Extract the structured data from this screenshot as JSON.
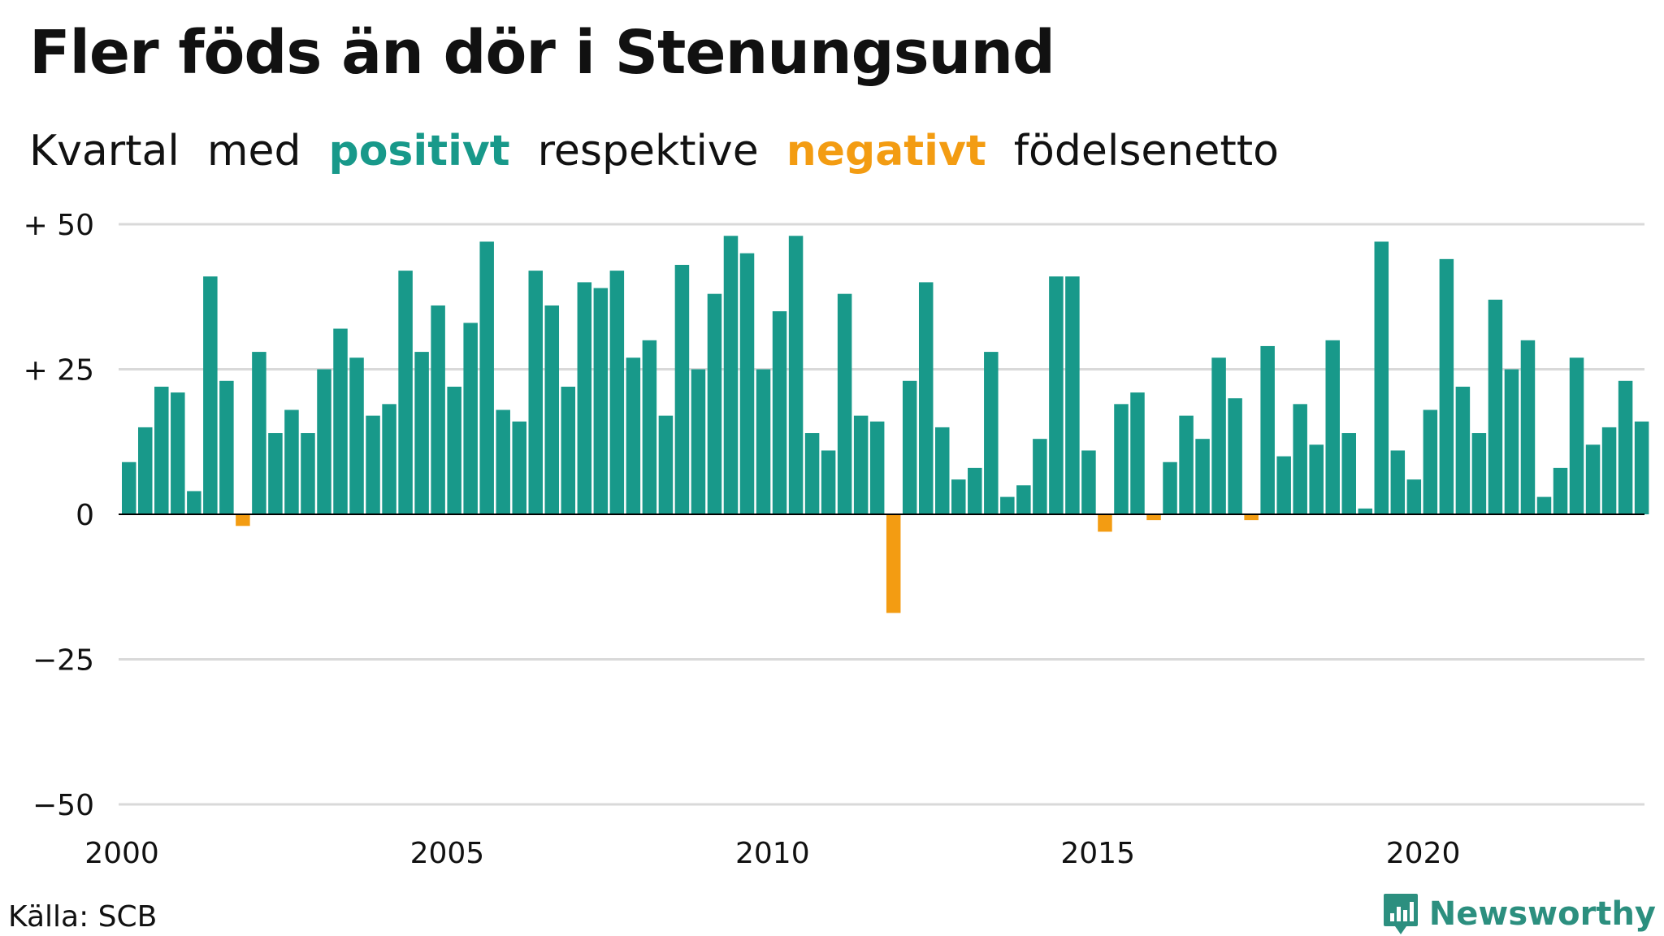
{
  "title": "Fler föds än dör i Stenungsund",
  "subtitle": {
    "part1": "Kvartal",
    "part2": "med",
    "positive": "positivt",
    "part3": "respektive",
    "negative": "negativt",
    "part4": "födelsenetto"
  },
  "source": "Källa: SCB",
  "brand": {
    "name": "Newsworthy",
    "icon": "newsworthy-logo-icon"
  },
  "colors": {
    "positive": "#18998a",
    "negative": "#f39c12",
    "grid": "#d9d9d9",
    "zero": "#000000",
    "brand": "#2c8f7f"
  },
  "chart_data": {
    "type": "bar",
    "x_start": "2000 Q1",
    "ylim": [
      -50,
      50
    ],
    "yticks": [
      50,
      25,
      0,
      -25,
      -50
    ],
    "ytick_labels": [
      "+ 50",
      "+ 25",
      "0",
      "−25",
      "−50"
    ],
    "xtick_labels": [
      "2000",
      "2005",
      "2010",
      "2015",
      "2020"
    ],
    "grid": true,
    "values": [
      9,
      15,
      22,
      21,
      4,
      41,
      23,
      -2,
      28,
      14,
      18,
      14,
      25,
      32,
      27,
      17,
      19,
      42,
      28,
      36,
      22,
      33,
      47,
      18,
      16,
      42,
      36,
      22,
      40,
      39,
      42,
      27,
      30,
      17,
      43,
      25,
      38,
      48,
      45,
      25,
      35,
      48,
      14,
      11,
      38,
      17,
      16,
      -17,
      23,
      40,
      15,
      6,
      8,
      28,
      3,
      5,
      13,
      41,
      41,
      11,
      -3,
      19,
      21,
      -1,
      9,
      17,
      13,
      27,
      20,
      -1,
      29,
      10,
      19,
      12,
      30,
      14,
      1,
      47,
      11,
      6,
      18,
      44,
      22,
      14,
      37,
      25,
      30,
      3,
      8,
      27,
      12,
      15,
      23,
      16
    ]
  }
}
